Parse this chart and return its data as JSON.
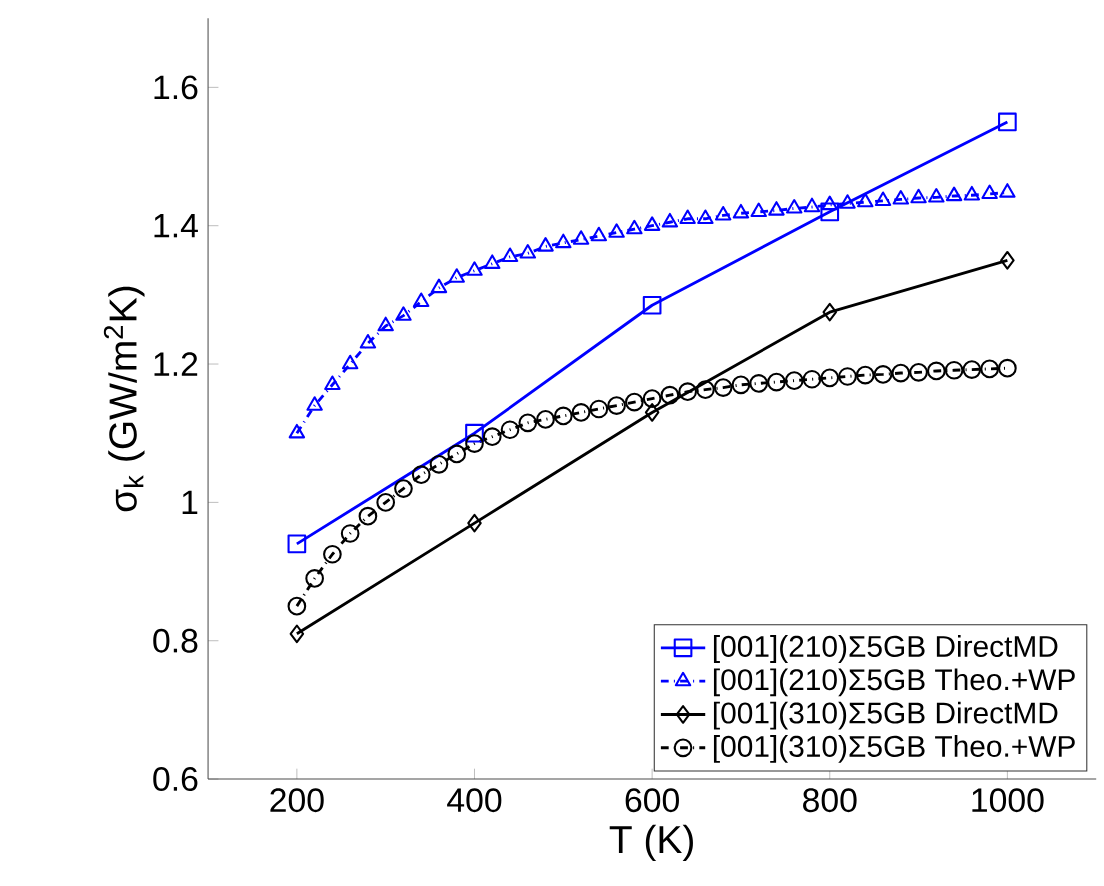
{
  "chart_data": {
    "type": "line",
    "xlabel": "T (K)",
    "ylabel": "σ$_{k}$ (GW/m$^{2}$K)",
    "xlim": [
      100,
      1100
    ],
    "ylim": [
      0.6,
      1.7
    ],
    "xticks": [
      200,
      400,
      600,
      800,
      1000
    ],
    "yticks": [
      0.6,
      0.8,
      1,
      1.2,
      1.4,
      1.6
    ],
    "legend": "bottom right",
    "grid": false,
    "series": [
      {
        "name": "[001](210)Σ5GB DirectMD",
        "color": "#0000ff",
        "marker": "square",
        "line_style": "solid",
        "x": [
          200,
          400,
          600,
          800,
          1000
        ],
        "values": [
          0.94,
          1.1,
          1.285,
          1.42,
          1.55
        ]
      },
      {
        "name": "[001](210)Σ5GB Theo.+WP",
        "color": "#0000ff",
        "marker": "triangle",
        "line_style": "dashdot",
        "x": [
          200,
          220,
          240,
          260,
          280,
          300,
          320,
          340,
          360,
          380,
          400,
          420,
          440,
          460,
          480,
          500,
          520,
          540,
          560,
          580,
          600,
          620,
          640,
          660,
          680,
          700,
          720,
          740,
          760,
          780,
          800,
          820,
          840,
          860,
          880,
          900,
          920,
          940,
          960,
          980,
          1000
        ],
        "values": [
          1.1,
          1.14,
          1.17,
          1.2,
          1.23,
          1.255,
          1.27,
          1.29,
          1.31,
          1.325,
          1.335,
          1.345,
          1.355,
          1.36,
          1.37,
          1.375,
          1.38,
          1.385,
          1.39,
          1.395,
          1.4,
          1.405,
          1.41,
          1.41,
          1.415,
          1.418,
          1.42,
          1.422,
          1.425,
          1.427,
          1.43,
          1.432,
          1.434,
          1.436,
          1.438,
          1.44,
          1.441,
          1.443,
          1.444,
          1.446,
          1.448
        ]
      },
      {
        "name": "[001](310)Σ5GB DirectMD",
        "color": "#000000",
        "marker": "diamond",
        "line_style": "solid",
        "x": [
          200,
          400,
          600,
          800,
          1000
        ],
        "values": [
          0.81,
          0.97,
          1.13,
          1.275,
          1.35
        ]
      },
      {
        "name": "[001](310)Σ5GB Theo.+WP",
        "color": "#000000",
        "marker": "circle",
        "line_style": "dashdot",
        "x": [
          200,
          220,
          240,
          260,
          280,
          300,
          320,
          340,
          360,
          380,
          400,
          420,
          440,
          460,
          480,
          500,
          520,
          540,
          560,
          580,
          600,
          620,
          640,
          660,
          680,
          700,
          720,
          740,
          760,
          780,
          800,
          820,
          840,
          860,
          880,
          900,
          920,
          940,
          960,
          980,
          1000
        ],
        "values": [
          0.85,
          0.89,
          0.925,
          0.955,
          0.98,
          1.0,
          1.02,
          1.04,
          1.055,
          1.07,
          1.085,
          1.095,
          1.105,
          1.115,
          1.12,
          1.125,
          1.13,
          1.135,
          1.14,
          1.145,
          1.15,
          1.155,
          1.16,
          1.163,
          1.166,
          1.17,
          1.172,
          1.174,
          1.176,
          1.178,
          1.18,
          1.182,
          1.184,
          1.185,
          1.187,
          1.188,
          1.19,
          1.191,
          1.192,
          1.193,
          1.194
        ]
      }
    ]
  }
}
